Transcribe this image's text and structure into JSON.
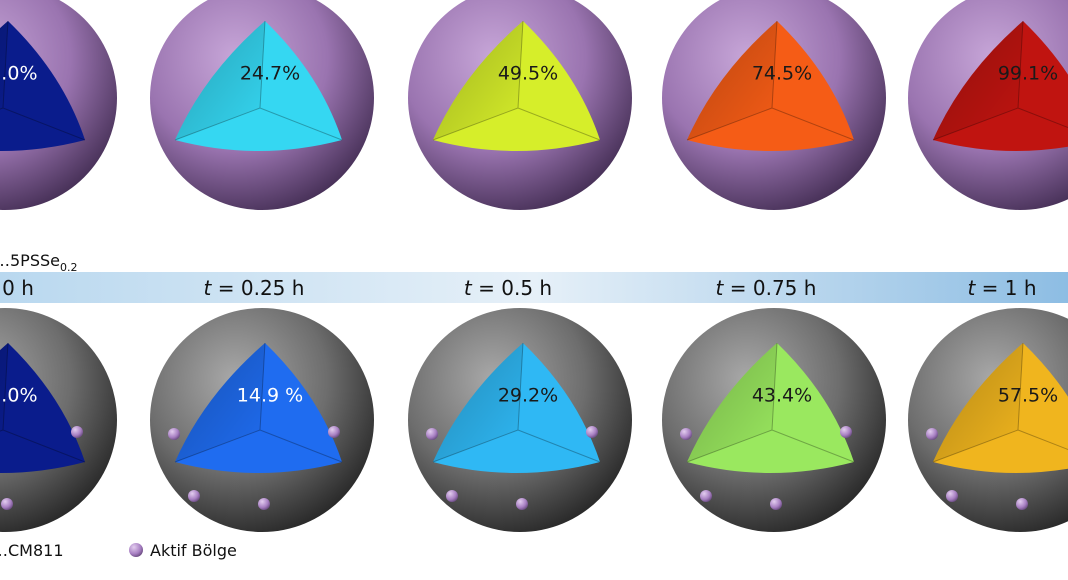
{
  "top_row": {
    "material_label": {
      "prefix": "…5PSSe",
      "subscript": "0.2"
    },
    "cells": [
      {
        "value": "…0%",
        "fill": "#0a1c8c",
        "text_color": "#ffffff"
      },
      {
        "value": "24.7%",
        "fill": "#35d7f2",
        "text_color": "#1a1a1a"
      },
      {
        "value": "49.5%",
        "fill": "#d6ee2a",
        "text_color": "#1a1a1a"
      },
      {
        "value": "74.5%",
        "fill": "#f55c16",
        "text_color": "#1a1a1a"
      },
      {
        "value": "99.1%",
        "fill": "#c01410",
        "text_color": "#1a1a1a"
      }
    ]
  },
  "time_band": {
    "variable": "t",
    "labels": [
      {
        "pre": "",
        "var": "",
        "post": "…0 h"
      },
      {
        "pre": "",
        "var": "t",
        "post": " = 0.25 h"
      },
      {
        "pre": "",
        "var": "t",
        "post": " = 0.5 h"
      },
      {
        "pre": "",
        "var": "t",
        "post": " = 0.75 h"
      },
      {
        "pre": "",
        "var": "t",
        "post": " = 1 h"
      }
    ]
  },
  "bottom_row": {
    "material_label": "…CM811",
    "legend": {
      "label": "Aktif Bölge",
      "color": "#a77fc2"
    },
    "cells": [
      {
        "value": "…0%",
        "fill": "#0a1c8c",
        "text_color": "#ffffff"
      },
      {
        "value": "14.9 %",
        "fill": "#1f6cf0",
        "text_color": "#ffffff"
      },
      {
        "value": "29.2%",
        "fill": "#2fb8f4",
        "text_color": "#1a1a1a"
      },
      {
        "value": "43.4%",
        "fill": "#9ae85f",
        "text_color": "#1a1a1a"
      },
      {
        "value": "57.5%",
        "fill": "#f0b51e",
        "text_color": "#1a1a1a"
      }
    ]
  }
}
